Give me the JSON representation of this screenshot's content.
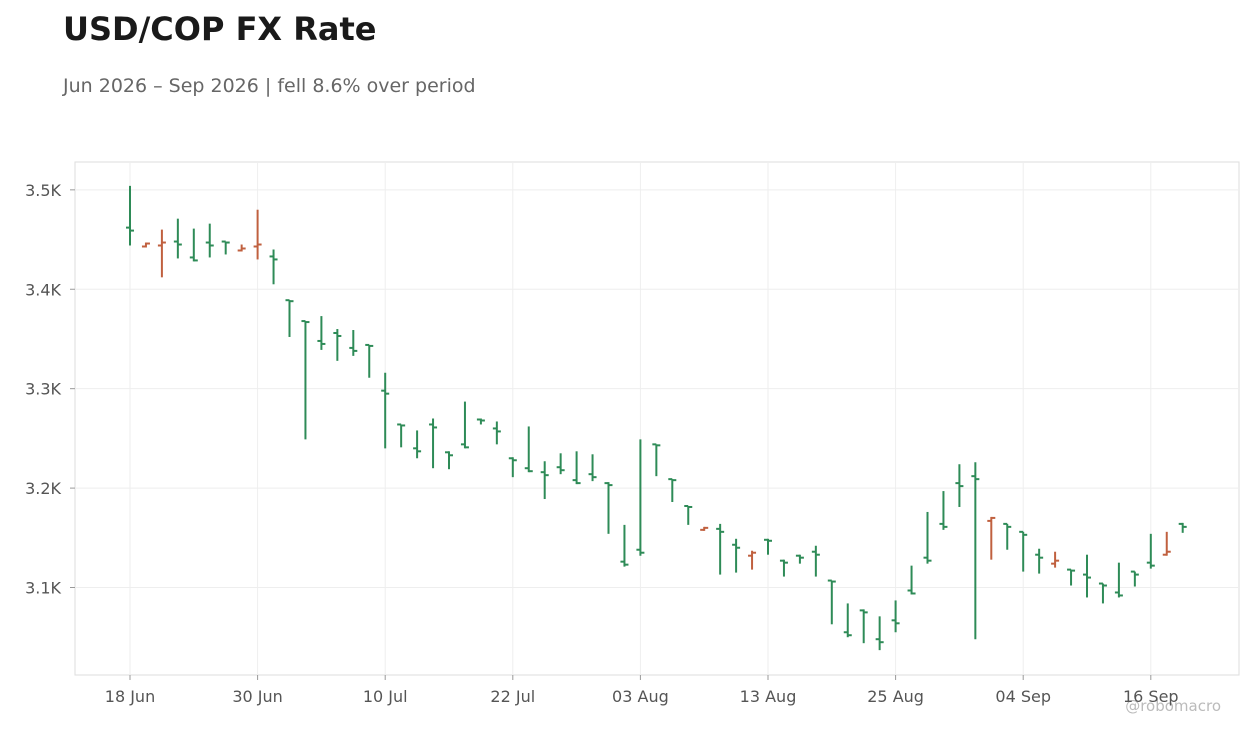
{
  "chart_data": {
    "type": "ohlc",
    "title": "USD/COP FX Rate",
    "subtitle": "Jun 2026 – Sep 2026 | fell 8.6% over period",
    "watermark": "@robomacro",
    "categories": [
      "18 Jun",
      null,
      null,
      null,
      null,
      null,
      null,
      null,
      "30 Jun",
      null,
      null,
      null,
      null,
      null,
      null,
      null,
      "10 Jul",
      null,
      null,
      null,
      null,
      null,
      null,
      null,
      "22 Jul",
      null,
      null,
      null,
      null,
      null,
      null,
      null,
      "03 Aug",
      null,
      null,
      null,
      null,
      null,
      null,
      null,
      "13 Aug",
      null,
      null,
      null,
      null,
      null,
      null,
      null,
      "25 Aug",
      null,
      null,
      null,
      null,
      null,
      null,
      null,
      "04 Sep",
      null,
      null,
      null,
      null,
      null,
      null,
      null,
      "16 Sep",
      null,
      null
    ],
    "open": [
      3462,
      3443,
      3444,
      3448,
      3432,
      3447,
      3448,
      3439,
      3443,
      3433,
      3389,
      3368,
      3348,
      3356,
      3341,
      3344,
      3298,
      3264,
      3240,
      3264,
      3236,
      3244,
      3269,
      3260,
      3230,
      3220,
      3216,
      3221,
      3208,
      3214,
      3205,
      3126,
      3138,
      3244,
      3209,
      3182,
      3158,
      3159,
      3143,
      3132,
      3148,
      3127,
      3132,
      3136,
      3107,
      3055,
      3077,
      3048,
      3067,
      3097,
      3130,
      3164,
      3205,
      3212,
      3167,
      3164,
      3156,
      3133,
      3124,
      3118,
      3113,
      3104,
      3095,
      3116,
      3125,
      3133,
      3164
    ],
    "high": [
      3504,
      3447,
      3460,
      3471,
      3461,
      3466,
      3448,
      3445,
      3480,
      3440,
      3389,
      3368,
      3373,
      3360,
      3359,
      3344,
      3316,
      3264,
      3258,
      3270,
      3237,
      3287,
      3270,
      3267,
      3231,
      3262,
      3227,
      3235,
      3237,
      3234,
      3206,
      3163,
      3249,
      3244,
      3209,
      3182,
      3161,
      3164,
      3149,
      3137,
      3149,
      3128,
      3133,
      3142,
      3107,
      3084,
      3078,
      3071,
      3087,
      3122,
      3176,
      3197,
      3224,
      3226,
      3171,
      3164,
      3156,
      3139,
      3136,
      3118,
      3133,
      3104,
      3125,
      3116,
      3154,
      3156,
      3165
    ],
    "low": [
      3444,
      3442,
      3412,
      3431,
      3428,
      3432,
      3435,
      3438,
      3430,
      3405,
      3352,
      3249,
      3339,
      3328,
      3333,
      3311,
      3240,
      3241,
      3230,
      3220,
      3219,
      3240,
      3264,
      3244,
      3211,
      3216,
      3189,
      3214,
      3204,
      3207,
      3154,
      3121,
      3132,
      3212,
      3186,
      3163,
      3157,
      3113,
      3115,
      3118,
      3133,
      3111,
      3124,
      3111,
      3063,
      3050,
      3044,
      3037,
      3055,
      3093,
      3124,
      3158,
      3181,
      3048,
      3128,
      3138,
      3116,
      3114,
      3120,
      3102,
      3090,
      3084,
      3090,
      3101,
      3119,
      3132,
      3155
    ],
    "close": [
      3459,
      3446,
      3447,
      3445,
      3429,
      3444,
      3447,
      3441,
      3445,
      3430,
      3388,
      3367,
      3345,
      3353,
      3338,
      3343,
      3295,
      3263,
      3237,
      3261,
      3233,
      3241,
      3268,
      3257,
      3228,
      3217,
      3213,
      3218,
      3205,
      3211,
      3203,
      3123,
      3135,
      3243,
      3208,
      3181,
      3160,
      3156,
      3140,
      3135,
      3147,
      3125,
      3130,
      3133,
      3106,
      3052,
      3075,
      3045,
      3064,
      3094,
      3127,
      3161,
      3202,
      3209,
      3170,
      3161,
      3153,
      3130,
      3127,
      3117,
      3110,
      3102,
      3092,
      3113,
      3122,
      3136,
      3161
    ],
    "up_color": "#c0603f",
    "down_color": "#2e8b57",
    "ylim": [
      3012,
      3528
    ],
    "yticks": [
      {
        "value": 3100,
        "label": "3.1K"
      },
      {
        "value": 3200,
        "label": "3.2K"
      },
      {
        "value": 3300,
        "label": "3.3K"
      },
      {
        "value": 3400,
        "label": "3.4K"
      },
      {
        "value": 3500,
        "label": "3.5K"
      }
    ],
    "grid": true
  }
}
